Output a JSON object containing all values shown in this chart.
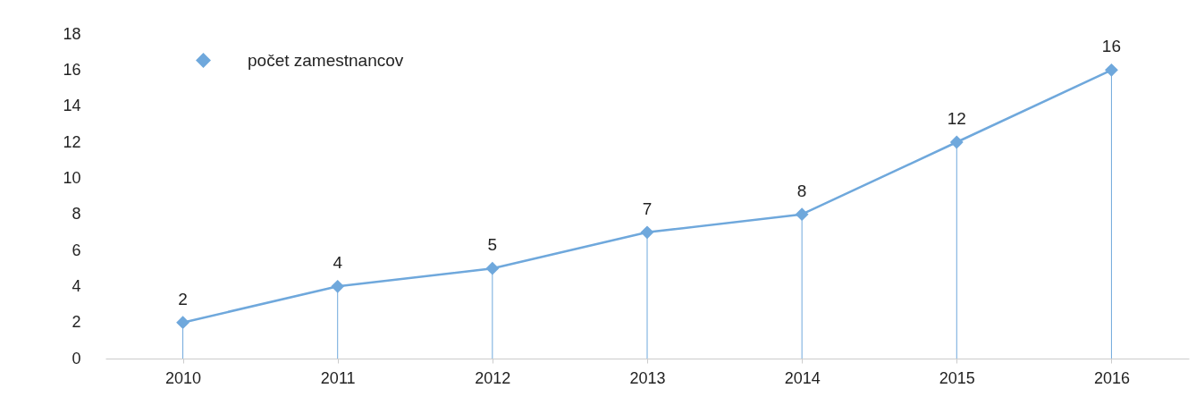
{
  "chart_data": {
    "type": "lollipop",
    "categories": [
      "2010",
      "2011",
      "2012",
      "2013",
      "2014",
      "2015",
      "2016"
    ],
    "series": [
      {
        "name": "počet zamestnancov",
        "color": "#6fa8dc",
        "values": [
          2,
          4,
          5,
          7,
          8,
          12,
          16
        ]
      }
    ],
    "ylim": [
      0,
      18
    ],
    "yticks": [
      0,
      2,
      4,
      6,
      8,
      10,
      12,
      14,
      16,
      18
    ],
    "grid": false,
    "legend": "top left",
    "marker": "diamond",
    "line_style": "solid",
    "data_labels": true
  }
}
